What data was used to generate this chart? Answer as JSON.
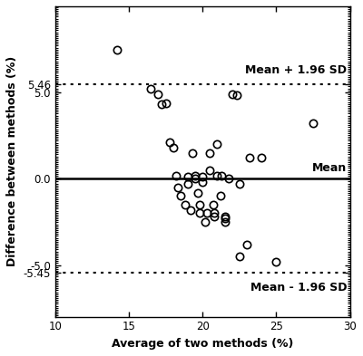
{
  "x_data": [
    14.2,
    16.5,
    17.0,
    17.2,
    17.5,
    17.8,
    18.0,
    18.2,
    18.3,
    18.5,
    18.8,
    19.0,
    19.0,
    19.2,
    19.3,
    19.5,
    19.5,
    19.7,
    19.8,
    19.8,
    20.0,
    20.0,
    20.2,
    20.3,
    20.5,
    20.5,
    20.7,
    20.8,
    20.8,
    21.0,
    21.0,
    21.2,
    21.3,
    21.5,
    21.5,
    21.5,
    21.8,
    22.0,
    22.3,
    22.5,
    22.5,
    23.0,
    23.2,
    24.0,
    25.0,
    27.5
  ],
  "y_data": [
    7.5,
    5.2,
    4.9,
    4.3,
    4.4,
    2.1,
    1.8,
    0.2,
    -0.5,
    -1.0,
    -1.5,
    0.1,
    -0.3,
    -1.8,
    1.5,
    0.2,
    0.0,
    -0.8,
    -1.5,
    -2.0,
    0.1,
    -0.2,
    -2.5,
    -2.0,
    1.5,
    0.5,
    -1.5,
    -2.0,
    -2.2,
    2.0,
    0.2,
    -1.0,
    0.2,
    -2.2,
    -2.3,
    -2.5,
    0.0,
    4.9,
    4.85,
    -0.3,
    -4.5,
    -3.8,
    1.2,
    1.2,
    -4.8,
    3.2
  ],
  "mean_line": 0.0,
  "upper_limit": 5.46,
  "lower_limit": -5.45,
  "upper_label": "Mean + 1.96 SD",
  "lower_label": "Mean - 1.96 SD",
  "mean_label": "Mean",
  "xlabel": "Average of two methods (%)",
  "ylabel": "Difference between methods (%)",
  "xlim": [
    10,
    30
  ],
  "ylim": [
    -8.0,
    10.0
  ],
  "xticks": [
    10,
    15,
    20,
    25,
    30
  ],
  "yticks": [
    5.46,
    5.0,
    0.0,
    -5.0,
    -5.45
  ],
  "ytick_labels": [
    "5.46",
    "5.0",
    "0.0",
    "-5.0",
    "-5.45"
  ],
  "bg_color": "#ffffff",
  "line_color": "#000000",
  "marker_facecolor": "none",
  "marker_edgecolor": "#000000",
  "marker_size": 6,
  "marker_linewidth": 1.2,
  "solid_linewidth": 1.8,
  "dotted_linewidth": 1.5,
  "label_fontsize": 9,
  "tick_fontsize": 8.5,
  "annotation_fontsize": 9
}
